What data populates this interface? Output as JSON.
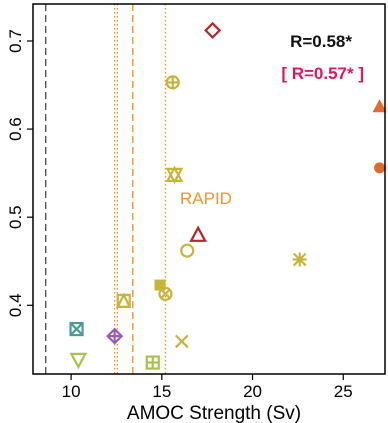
{
  "chart_data": {
    "type": "scatter",
    "title": "",
    "xlabel": "AMOC Strength (Sv)",
    "ylabel": "",
    "xlim": [
      7.9,
      27.3
    ],
    "ylim": [
      0.322,
      0.742
    ],
    "xticks": [
      10,
      15,
      20,
      25
    ],
    "yticks": [
      0.4,
      0.5,
      0.6,
      0.7
    ],
    "xtick_labels": [
      "10",
      "15",
      "20",
      "25"
    ],
    "ytick_labels": [
      "0.4",
      "0.5",
      "0.6",
      "0.7"
    ],
    "grid": false,
    "vlines": [
      {
        "x": 8.6,
        "style": "dashed",
        "color": "#555555"
      },
      {
        "x": 12.4,
        "style": "dotted",
        "color": "#f0952f"
      },
      {
        "x": 12.55,
        "style": "dotted",
        "color": "#f0952f"
      },
      {
        "x": 13.4,
        "style": "dashed",
        "color": "#f0952f"
      },
      {
        "x": 15.2,
        "style": "dotted",
        "color": "#f0952f"
      }
    ],
    "annotations": [
      {
        "text": "R=0.58*",
        "color": "#111111",
        "bold": true
      },
      {
        "text": "[ R=0.57* ]",
        "color": "#e3155f",
        "bold": true
      },
      {
        "text": "RAPID",
        "color": "#f0952f",
        "bold": false
      }
    ],
    "points": [
      {
        "x": 17.8,
        "y": 0.712,
        "marker": "diamond",
        "color": "#b8242a"
      },
      {
        "x": 15.6,
        "y": 0.653,
        "marker": "circle-plus",
        "color": "#c7b43a"
      },
      {
        "x": 27.0,
        "y": 0.626,
        "marker": "triangle-filled",
        "color": "#e36a2c"
      },
      {
        "x": 27.0,
        "y": 0.556,
        "marker": "circle-filled",
        "color": "#e36a2c"
      },
      {
        "x": 15.7,
        "y": 0.548,
        "marker": "hourglass",
        "color": "#c7b43a"
      },
      {
        "x": 17.0,
        "y": 0.48,
        "marker": "triangle",
        "color": "#b8242a"
      },
      {
        "x": 16.4,
        "y": 0.462,
        "marker": "circle",
        "color": "#c7b43a"
      },
      {
        "x": 22.6,
        "y": 0.452,
        "marker": "asterisk",
        "color": "#c7b43a"
      },
      {
        "x": 14.9,
        "y": 0.423,
        "marker": "square-filled",
        "color": "#c7b43a"
      },
      {
        "x": 15.2,
        "y": 0.413,
        "marker": "circle-cross",
        "color": "#c7b43a"
      },
      {
        "x": 12.9,
        "y": 0.405,
        "marker": "square-triangle",
        "color": "#c7b43a"
      },
      {
        "x": 10.3,
        "y": 0.373,
        "marker": "square-cross",
        "color": "#4a9a95"
      },
      {
        "x": 12.4,
        "y": 0.365,
        "marker": "diamond-plus",
        "color": "#9b5bb5"
      },
      {
        "x": 16.1,
        "y": 0.359,
        "marker": "cross",
        "color": "#c7b43a"
      },
      {
        "x": 10.4,
        "y": 0.338,
        "marker": "triangle-down",
        "color": "#a8c24a"
      },
      {
        "x": 14.5,
        "y": 0.335,
        "marker": "square-plus",
        "color": "#a8c24a"
      }
    ]
  }
}
